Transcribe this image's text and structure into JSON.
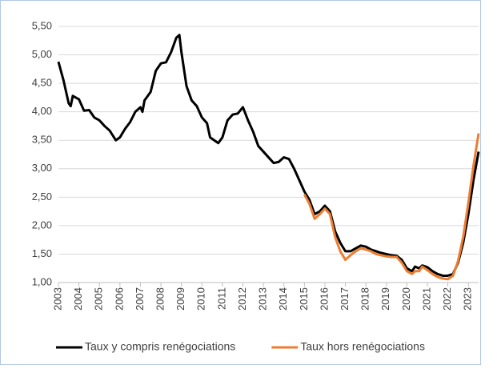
{
  "chart_data": {
    "type": "line",
    "x": [
      2003.0,
      2003.25,
      2003.5,
      2003.6,
      2003.7,
      2004.0,
      2004.25,
      2004.5,
      2004.75,
      2005.0,
      2005.25,
      2005.5,
      2005.8,
      2006.0,
      2006.25,
      2006.5,
      2006.75,
      2007.0,
      2007.1,
      2007.2,
      2007.5,
      2007.75,
      2008.0,
      2008.25,
      2008.5,
      2008.75,
      2008.9,
      2009.0,
      2009.25,
      2009.5,
      2009.75,
      2010.0,
      2010.25,
      2010.4,
      2010.6,
      2010.8,
      2011.0,
      2011.25,
      2011.5,
      2011.75,
      2012.0,
      2012.25,
      2012.5,
      2012.75,
      2013.0,
      2013.25,
      2013.5,
      2013.75,
      2014.0,
      2014.25,
      2014.5,
      2014.75,
      2015.0,
      2015.25,
      2015.5,
      2015.75,
      2016.0,
      2016.25,
      2016.5,
      2016.75,
      2017.0,
      2017.25,
      2017.5,
      2017.75,
      2018.0,
      2018.25,
      2018.5,
      2018.75,
      2019.0,
      2019.25,
      2019.5,
      2019.75,
      2020.0,
      2020.25,
      2020.4,
      2020.6,
      2020.75,
      2021.0,
      2021.25,
      2021.5,
      2021.75,
      2022.0,
      2022.25,
      2022.5,
      2022.75,
      2023.0,
      2023.25,
      2023.5
    ],
    "series": [
      {
        "name": "Taux y compris renégociations",
        "color": "#000000",
        "values": [
          4.88,
          4.55,
          4.15,
          4.1,
          4.28,
          4.22,
          4.02,
          4.03,
          3.9,
          3.85,
          3.75,
          3.67,
          3.5,
          3.55,
          3.7,
          3.82,
          4.0,
          4.08,
          4.0,
          4.2,
          4.35,
          4.72,
          4.85,
          4.87,
          5.05,
          5.3,
          5.35,
          5.05,
          4.45,
          4.2,
          4.1,
          3.9,
          3.8,
          3.55,
          3.5,
          3.45,
          3.55,
          3.85,
          3.95,
          3.97,
          4.08,
          3.85,
          3.65,
          3.4,
          3.3,
          3.2,
          3.1,
          3.12,
          3.2,
          3.17,
          3.0,
          2.8,
          2.6,
          2.45,
          2.2,
          2.25,
          2.35,
          2.25,
          1.9,
          1.7,
          1.55,
          1.55,
          1.6,
          1.65,
          1.63,
          1.58,
          1.55,
          1.52,
          1.5,
          1.48,
          1.47,
          1.4,
          1.25,
          1.2,
          1.28,
          1.25,
          1.3,
          1.27,
          1.2,
          1.15,
          1.12,
          1.12,
          1.15,
          1.35,
          1.7,
          2.2,
          2.8,
          3.3
        ]
      },
      {
        "name": "Taux hors renégociations",
        "color": "#ed7d31",
        "values": [
          null,
          null,
          null,
          null,
          null,
          null,
          null,
          null,
          null,
          null,
          null,
          null,
          null,
          null,
          null,
          null,
          null,
          null,
          null,
          null,
          null,
          null,
          null,
          null,
          null,
          null,
          null,
          null,
          null,
          null,
          null,
          null,
          null,
          null,
          null,
          null,
          null,
          null,
          null,
          null,
          null,
          null,
          null,
          null,
          null,
          null,
          null,
          null,
          null,
          null,
          null,
          null,
          2.55,
          2.38,
          2.12,
          2.2,
          2.3,
          2.2,
          1.8,
          1.55,
          1.4,
          1.48,
          1.55,
          1.6,
          1.58,
          1.55,
          1.5,
          1.48,
          1.46,
          1.45,
          1.45,
          1.35,
          1.2,
          1.15,
          1.2,
          1.2,
          1.28,
          1.22,
          1.15,
          1.1,
          1.07,
          1.06,
          1.12,
          1.38,
          1.8,
          2.4,
          3.05,
          3.62
        ]
      }
    ],
    "xlim": [
      2003,
      2023.5
    ],
    "xticks": [
      2003,
      2004,
      2005,
      2006,
      2007,
      2008,
      2009,
      2010,
      2011,
      2012,
      2013,
      2014,
      2015,
      2016,
      2017,
      2018,
      2019,
      2020,
      2021,
      2022,
      2023
    ],
    "ylim": [
      1,
      5.5
    ],
    "yticks": [
      {
        "value": 1,
        "label": "1,00"
      },
      {
        "value": 1.5,
        "label": "1,50"
      },
      {
        "value": 2,
        "label": "2,00"
      },
      {
        "value": 2.5,
        "label": "2,50"
      },
      {
        "value": 3,
        "label": "3,00"
      },
      {
        "value": 3.5,
        "label": "3,50"
      },
      {
        "value": 4,
        "label": "4,00"
      },
      {
        "value": 4.5,
        "label": "4,50"
      },
      {
        "value": 5,
        "label": "5,00"
      },
      {
        "value": 5.5,
        "label": "5,50"
      }
    ],
    "grid": true,
    "legend": "bottom"
  }
}
